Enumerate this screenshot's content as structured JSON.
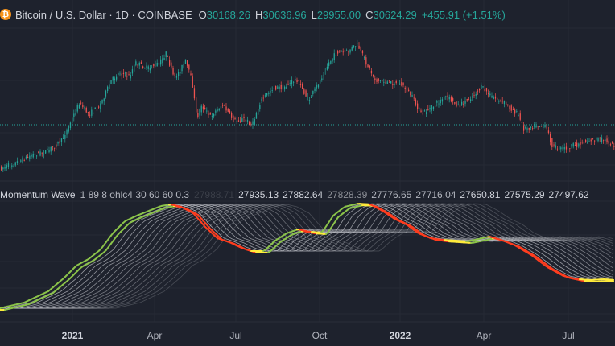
{
  "header": {
    "logo_glyph": "₿",
    "symbol": "Bitcoin / U.S. Dollar · 1D · COINBASE",
    "open_label": "O",
    "open": "30168.26",
    "high_label": "H",
    "high": "30636.96",
    "low_label": "L",
    "low": "29955.00",
    "close_label": "C",
    "close": "30624.29",
    "change": "+455.91 (+1.51%)"
  },
  "indicator": {
    "title": "Momentum Wave",
    "params": "1 89 8 ohlc4 30 60 60 0.3",
    "values": [
      {
        "text": "27988.71",
        "color": "#3a3e48"
      },
      {
        "text": "27935.13",
        "color": "#d1d4dc"
      },
      {
        "text": "27882.64",
        "color": "#d1d4dc"
      },
      {
        "text": "27828.39",
        "color": "#8c8f96"
      },
      {
        "text": "27776.65",
        "color": "#b2b5be"
      },
      {
        "text": "27716.04",
        "color": "#b2b5be"
      },
      {
        "text": "27650.81",
        "color": "#d1d4dc"
      },
      {
        "text": "27575.29",
        "color": "#d1d4dc"
      },
      {
        "text": "27497.62",
        "color": "#d1d4dc"
      }
    ]
  },
  "time_axis": {
    "ticks": [
      {
        "label": "2021",
        "year": true
      },
      {
        "label": "Apr",
        "year": false
      },
      {
        "label": "Jul",
        "year": false
      },
      {
        "label": "Oct",
        "year": false
      },
      {
        "label": "2022",
        "year": true
      },
      {
        "label": "Apr",
        "year": false
      },
      {
        "label": "Jul",
        "year": false
      }
    ]
  },
  "colors": {
    "background": "#1e222d",
    "up": "#26a69a",
    "down": "#ef5350",
    "wave_bull": "#8bc34a",
    "wave_bear": "#ff3d1f",
    "wave_transition": "#ffeb3b",
    "wave_ribbon": "#c8cad0"
  },
  "chart_data": [
    {
      "type": "candlestick",
      "title": "Bitcoin / U.S. Dollar · 1D · COINBASE",
      "ohlc_latest": {
        "open": 30168.26,
        "high": 30636.96,
        "low": 29955.0,
        "close": 30624.29
      },
      "x_ticks": [
        "2021",
        "Apr",
        "Jul",
        "Oct",
        "2022",
        "Apr",
        "Jul"
      ],
      "x": [
        "2020-11",
        "2020-12",
        "2021-01",
        "2021-02",
        "2021-03",
        "2021-04",
        "2021-05",
        "2021-06",
        "2021-07",
        "2021-08",
        "2021-09",
        "2021-10",
        "2021-11",
        "2021-12",
        "2022-01",
        "2022-02",
        "2022-03",
        "2022-04",
        "2022-05",
        "2022-06",
        "2022-07"
      ],
      "close_approx": [
        17000,
        23000,
        33000,
        45000,
        58000,
        57000,
        37000,
        35000,
        33000,
        47000,
        43000,
        61000,
        57000,
        47000,
        38000,
        43000,
        45000,
        38000,
        31000,
        20000,
        23000
      ],
      "grid": true
    },
    {
      "type": "line",
      "title": "Momentum Wave",
      "description_params": "1 89 8 ohlc4 30 60 60 0.3",
      "latest_values": [
        27988.71,
        27935.13,
        27882.64,
        27828.39,
        27776.65,
        27716.04,
        27650.81,
        27575.29,
        27497.62
      ]
    }
  ]
}
